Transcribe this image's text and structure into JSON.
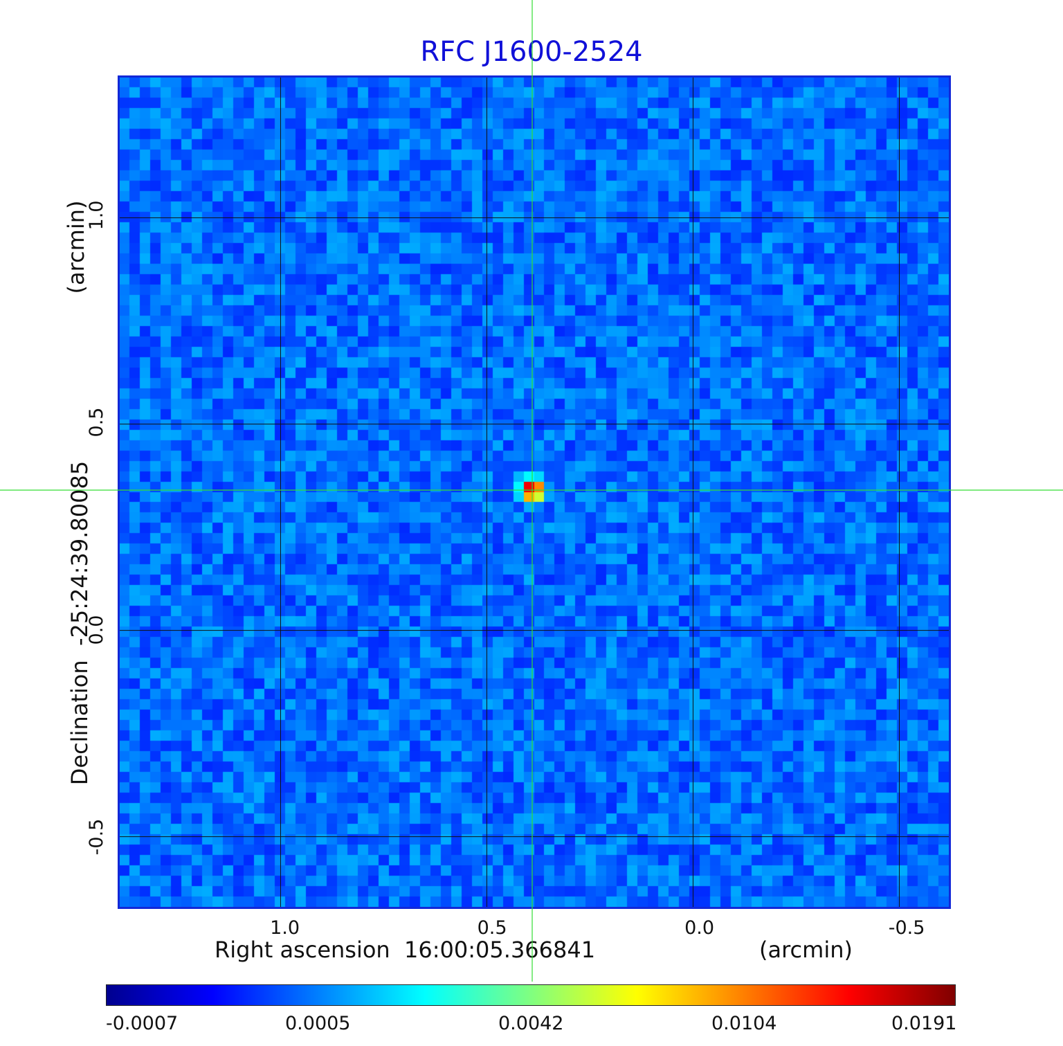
{
  "chart_data": {
    "type": "heatmap",
    "title": "RFC J1600-2524",
    "xlabel": "Right ascension  16:00:05.366841",
    "xunit": "(arcmin)",
    "ylabel": "Declination  -25:24:39.80085",
    "yunit": "(arcmin)",
    "x_ticks": [
      {
        "value": 1.0,
        "label": "1.0"
      },
      {
        "value": 0.5,
        "label": "0.5"
      },
      {
        "value": 0.0,
        "label": "0.0"
      },
      {
        "value": -0.5,
        "label": "-0.5"
      }
    ],
    "y_ticks": [
      {
        "value": 1.0,
        "label": "1.0"
      },
      {
        "value": 0.5,
        "label": "0.5"
      },
      {
        "value": 0.0,
        "label": "0.0"
      },
      {
        "value": -0.5,
        "label": "-0.5"
      }
    ],
    "xlim": [
      1.39,
      -0.62
    ],
    "ylim": [
      -0.67,
      1.34
    ],
    "grid": true,
    "crosshair": {
      "x": 0.39,
      "y": 0.34,
      "color": "#33dd33"
    },
    "source": {
      "x": 0.39,
      "y": 0.34,
      "peak": 0.0191
    },
    "background_level": 0.0002,
    "colormap": "jet",
    "colorbar": {
      "ticks": [
        "-0.0007",
        "0.0005",
        "0.0042",
        "0.0104",
        "0.0191"
      ],
      "colors": [
        "#00008f",
        "#0000ff",
        "#0080ff",
        "#00ffff",
        "#80ff80",
        "#ffff00",
        "#ff8000",
        "#ff0000",
        "#800000"
      ]
    }
  }
}
